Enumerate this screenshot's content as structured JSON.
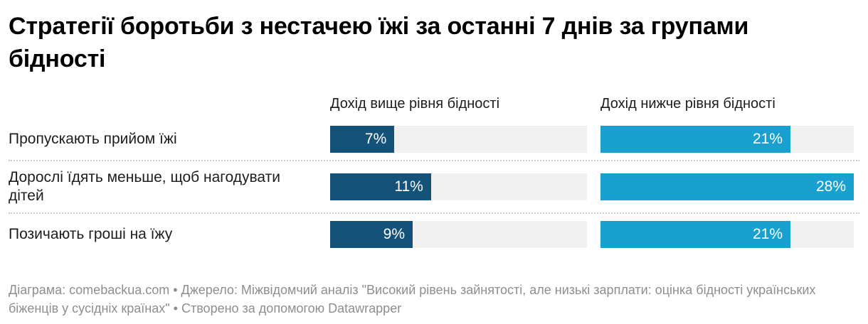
{
  "chart_data": {
    "type": "bar",
    "orientation": "horizontal",
    "title": "Стратегії боротьби з нестачею їжі за останні 7 днів за групами бідності",
    "categories": [
      "Пропускають прийом їжі",
      "Дорослі їдять меньше, щоб нагодувати дітей",
      "Позичають гроші на їжу"
    ],
    "series": [
      {
        "name": "Дохід вище рівня бідності",
        "color": "#14527a",
        "values": [
          7,
          11,
          9
        ]
      },
      {
        "name": "Дохід нижче рівня бідності",
        "color": "#1aa0cf",
        "values": [
          21,
          28,
          21
        ]
      }
    ],
    "value_suffix": "%",
    "xlim": [
      0,
      28
    ],
    "layout_hints": {
      "style": "split-column bars, value labels inside bars right-aligned in white",
      "track_color": "#f1f1f2",
      "separator": "dotted full-width between rows",
      "grid": "off",
      "legend": "column headers above each bar column"
    }
  },
  "footer": {
    "text": "Діаграма: comebackua.com • Джерело: Міжвідомчий аналіз \"Високий рівень зайнятості, але низькі зарплати: оцінка бідності українських біженців у сусідніх країнах\" • Створено за допомогою Datawrapper"
  }
}
